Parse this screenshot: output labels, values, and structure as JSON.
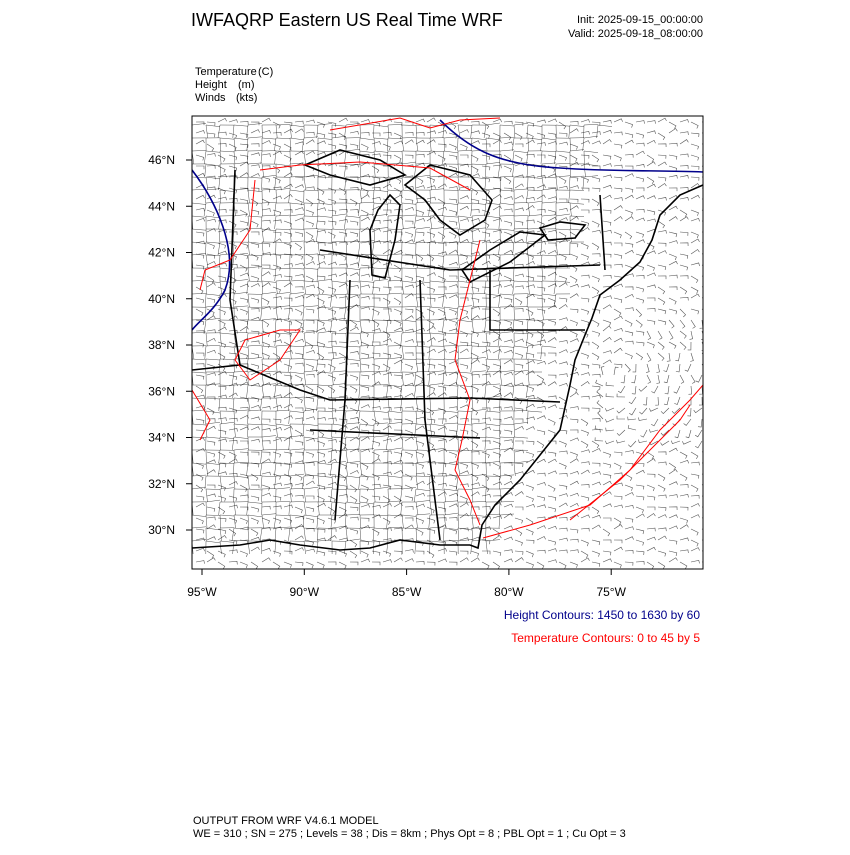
{
  "header": {
    "title": "IWFAQRP Eastern US Real Time WRF",
    "init": "Init: 2025-09-15_00:00:00",
    "valid": "Valid: 2025-09-18_08:00:00"
  },
  "fields": [
    {
      "name": "Temperature",
      "unit": "(C)"
    },
    {
      "name": "Height",
      "unit": "(m)"
    },
    {
      "name": "Winds",
      "unit": "(kts)"
    }
  ],
  "map": {
    "lat_labels": [
      "46°N",
      "44°N",
      "42°N",
      "40°N",
      "38°N",
      "36°N",
      "34°N",
      "32°N",
      "30°N"
    ],
    "lon_labels": [
      "95°W",
      "90°W",
      "85°W",
      "80°W",
      "75°W"
    ]
  },
  "contour_notes": [
    {
      "text": "Height Contours: 1450 to 1630 by 60",
      "color": "#00008b"
    },
    {
      "text": "Temperature Contours: 0 to 45 by 5",
      "color": "#ff0000"
    }
  ],
  "footer": {
    "line1": "OUTPUT FROM WRF V4.6.1 MODEL",
    "line2": "WE = 310 ; SN = 275 ; Levels = 38 ; Dis = 8km ; Phys Opt = 8 ; PBL Opt = 1 ; Cu Opt = 3"
  }
}
